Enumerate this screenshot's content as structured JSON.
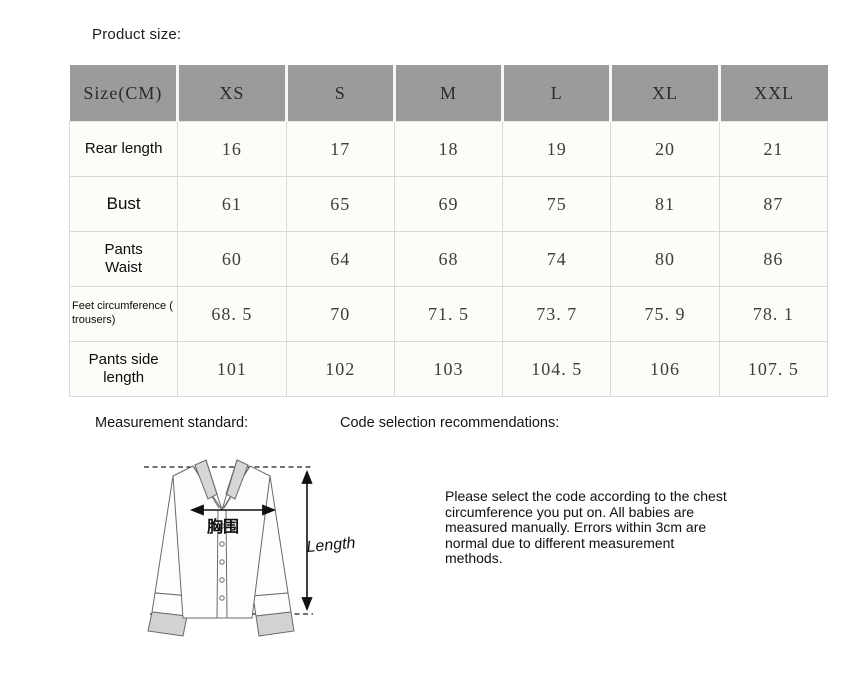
{
  "page": {
    "title": "Product size:"
  },
  "table": {
    "columns": [
      "Size(CM)",
      "XS",
      "S",
      "M",
      "L",
      "XL",
      "XXL"
    ],
    "rows": [
      {
        "label": "Rear length",
        "label_class": "md",
        "values": [
          "16",
          "17",
          "18",
          "19",
          "20",
          "21"
        ]
      },
      {
        "label": "Bust",
        "label_class": "lg",
        "values": [
          "61",
          "65",
          "69",
          "75",
          "81",
          "87"
        ]
      },
      {
        "label": "Pants\nWaist",
        "label_class": "md",
        "values": [
          "60",
          "64",
          "68",
          "74",
          "80",
          "86"
        ]
      },
      {
        "label": "Feet circumference (\ntrousers)",
        "label_class": "sm",
        "values": [
          "68. 5",
          "70",
          "71. 5",
          "73. 7",
          "75. 9",
          "78. 1"
        ]
      },
      {
        "label": "Pants side\nlength",
        "label_class": "md",
        "values": [
          "101",
          "102",
          "103",
          "104. 5",
          "106",
          "107. 5"
        ]
      }
    ]
  },
  "sections": {
    "measurement_title": "Measurement standard:",
    "code_title": "Code selection recommendations:",
    "note_lines": [
      "Please select the code according to the chest",
      "circumference you put on. All babies are",
      "measured manually. Errors within 3cm are",
      "normal due to different measurement",
      "methods."
    ]
  },
  "diagram": {
    "length_label": "Length",
    "chest_label": "胸围"
  },
  "colors": {
    "header_bg": "#9b9b9b",
    "cell_bg": "#fcfcf9",
    "border": "#d9d9d9",
    "value_text": "#3d3d3d"
  }
}
